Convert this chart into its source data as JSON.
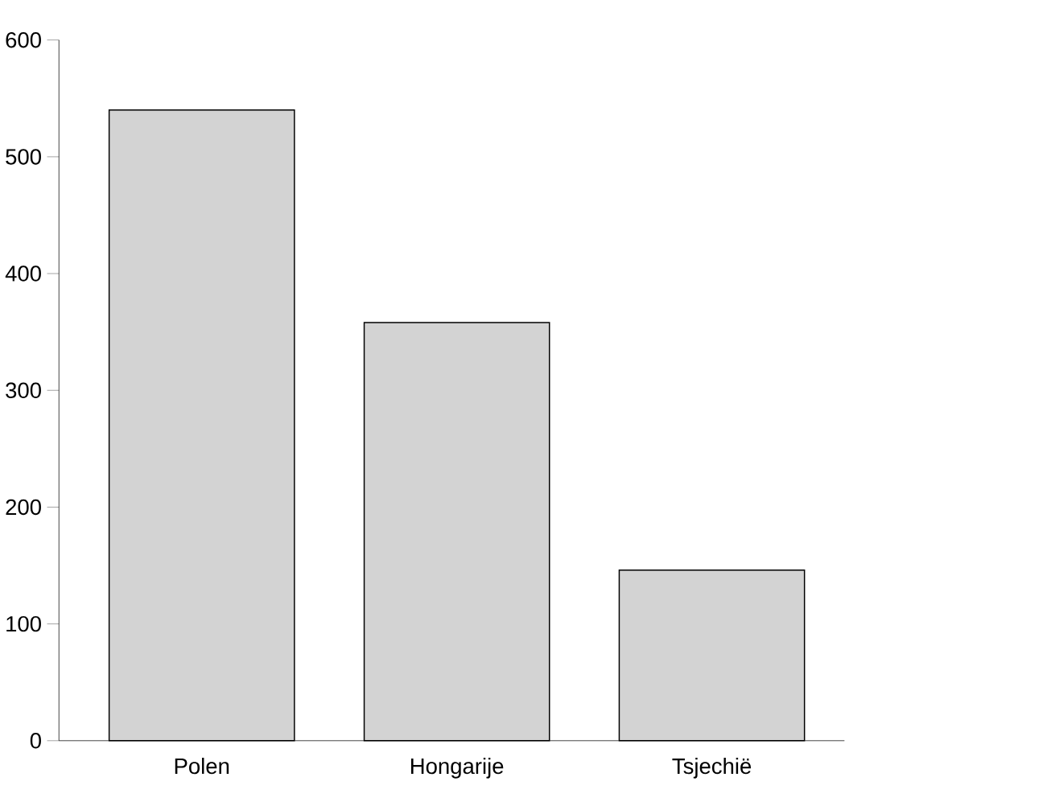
{
  "chart_data": {
    "type": "bar",
    "categories": [
      "Polen",
      "Hongarije",
      "Tsjechië"
    ],
    "values": [
      540,
      358,
      146
    ],
    "color": "#d3d3d3",
    "ylim": [
      0,
      600
    ],
    "yticks": [
      0,
      100,
      200,
      300,
      400,
      500,
      600
    ],
    "grid": false
  }
}
